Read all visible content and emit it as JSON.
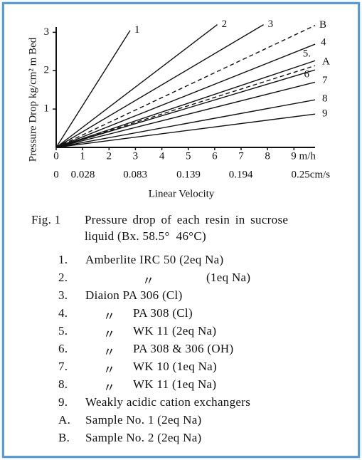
{
  "chart_data": {
    "type": "line",
    "ylabel": "Pressure Drop kg/cm² m Bed",
    "xlabel": "Linear Velocity",
    "xlim": [
      0,
      9.8
    ],
    "ylim": [
      0,
      3.1
    ],
    "x2lim": [
      0,
      0.272
    ],
    "xticks": [
      0,
      1,
      2,
      3,
      4,
      5,
      6,
      7,
      8,
      {
        "value": 9,
        "label": "9 m/h"
      }
    ],
    "yticks": [
      1,
      2,
      3
    ],
    "x2ticks": [
      0,
      0.028,
      0.083,
      0.139,
      0.194,
      {
        "value": 0.25,
        "label": "0.25cm/s"
      }
    ],
    "color": "#111111",
    "series": [
      {
        "name": "1",
        "x": [
          0,
          2.8
        ],
        "values": [
          0,
          3.05
        ],
        "style": "solid"
      },
      {
        "name": "2",
        "x": [
          0,
          6.1
        ],
        "values": [
          0,
          3.2
        ],
        "style": "solid"
      },
      {
        "name": "3",
        "x": [
          0,
          7.85
        ],
        "values": [
          0,
          3.2
        ],
        "style": "solid"
      },
      {
        "name": "B",
        "x": [
          0,
          9.8
        ],
        "values": [
          0,
          3.18
        ],
        "style": "dashed"
      },
      {
        "name": "4",
        "x": [
          0,
          9.8
        ],
        "values": [
          0,
          2.69
        ],
        "style": "solid"
      },
      {
        "name": "5.",
        "x": [
          0,
          9.8
        ],
        "values": [
          0,
          2.26
        ],
        "style": "solid"
      },
      {
        "name": "A",
        "x": [
          0,
          9.8
        ],
        "values": [
          0,
          2.13
        ],
        "style": "dashed"
      },
      {
        "name": "6",
        "x": [
          0,
          9.8
        ],
        "values": [
          0,
          2.02
        ],
        "style": "solid"
      },
      {
        "name": "7",
        "x": [
          0,
          9.8
        ],
        "values": [
          0,
          1.7
        ],
        "style": "solid"
      },
      {
        "name": "8",
        "x": [
          0,
          9.8
        ],
        "values": [
          0,
          1.24
        ],
        "style": "solid"
      },
      {
        "name": "9",
        "x": [
          0,
          9.8
        ],
        "values": [
          0,
          0.87
        ],
        "style": "solid"
      }
    ]
  },
  "caption": {
    "label": "Fig. 1",
    "line1": "Pressure drop of each resin in sucrose",
    "line2": "liquid (Bx. 58.5°  46°C)"
  },
  "legend_list": [
    {
      "key": "1.",
      "text": "Amberlite IRC 50 (2eq Na)"
    },
    {
      "key": "2.",
      "ditto": "〃",
      "text": "(1eq Na)"
    },
    {
      "key": "3.",
      "text": "Diaion PA 306 (Cl)"
    },
    {
      "key": "4.",
      "ditto": "〃",
      "text": "PA 308 (Cl)"
    },
    {
      "key": "5.",
      "ditto": "〃",
      "text": "WK 11 (2eq Na)"
    },
    {
      "key": "6.",
      "ditto": "〃",
      "text": "PA 308 & 306 (OH)"
    },
    {
      "key": "7.",
      "ditto": "〃",
      "text": "WK 10 (1eq Na)"
    },
    {
      "key": "8.",
      "ditto": "〃",
      "text": "WK 11 (1eq Na)"
    },
    {
      "key": "9.",
      "text": "Weakly acidic cation exchangers"
    },
    {
      "key": "A.",
      "text": "Sample No. 1 (2eq Na)"
    },
    {
      "key": "B.",
      "text": "Sample No. 2 (2eq Na)"
    }
  ]
}
